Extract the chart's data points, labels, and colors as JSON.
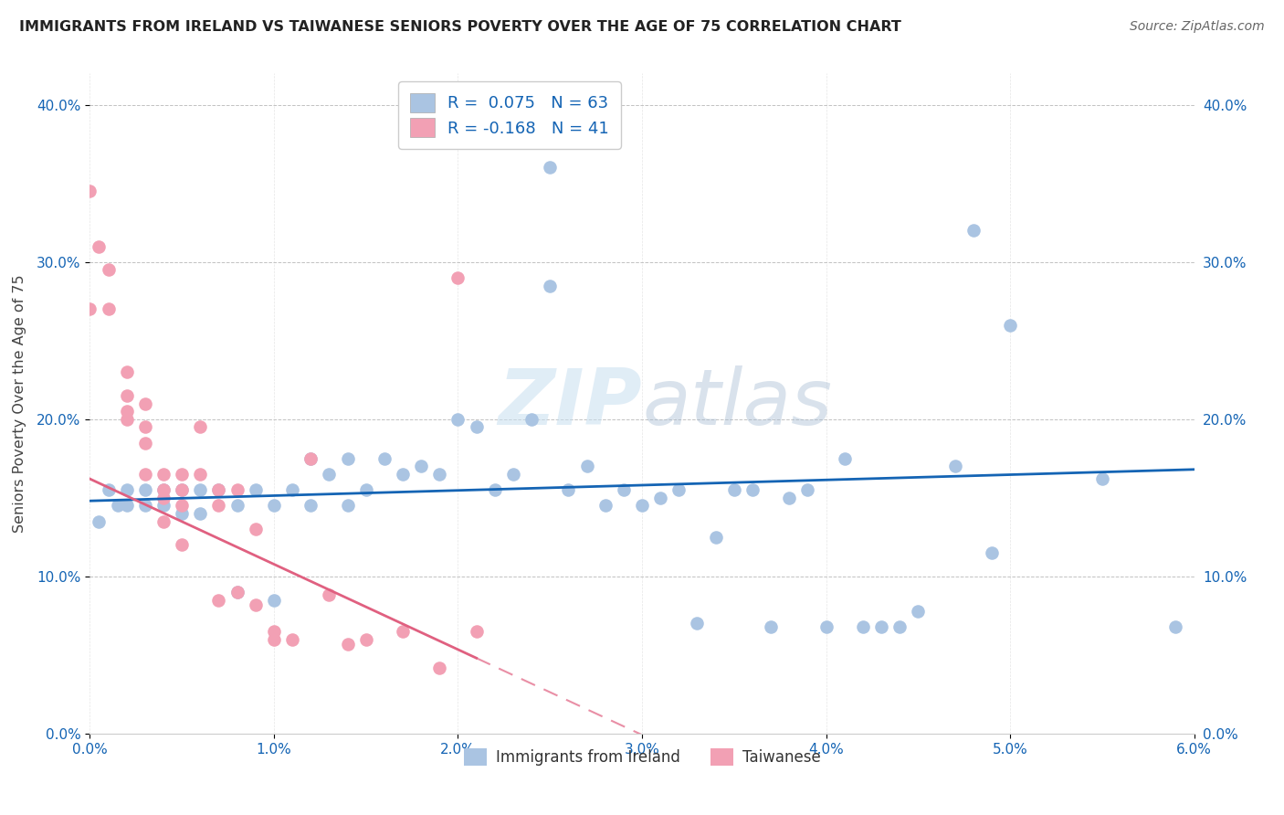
{
  "title": "IMMIGRANTS FROM IRELAND VS TAIWANESE SENIORS POVERTY OVER THE AGE OF 75 CORRELATION CHART",
  "source": "Source: ZipAtlas.com",
  "ylabel": "Seniors Poverty Over the Age of 75",
  "x_min": 0.0,
  "x_max": 0.06,
  "y_min": 0.0,
  "y_max": 0.42,
  "x_ticks": [
    0.0,
    0.01,
    0.02,
    0.03,
    0.04,
    0.05,
    0.06
  ],
  "y_ticks": [
    0.0,
    0.1,
    0.2,
    0.3,
    0.4
  ],
  "blue_color": "#aac4e2",
  "pink_color": "#f2a0b4",
  "blue_line_color": "#1464b4",
  "pink_line_color": "#e06080",
  "tick_color": "#1464b4",
  "watermark_color": "#c8dff0",
  "blue_scatter_x": [
    0.0005,
    0.001,
    0.0015,
    0.002,
    0.002,
    0.003,
    0.003,
    0.004,
    0.004,
    0.005,
    0.005,
    0.006,
    0.006,
    0.007,
    0.008,
    0.008,
    0.009,
    0.01,
    0.01,
    0.011,
    0.012,
    0.012,
    0.013,
    0.014,
    0.014,
    0.015,
    0.016,
    0.017,
    0.018,
    0.019,
    0.02,
    0.021,
    0.022,
    0.023,
    0.024,
    0.025,
    0.026,
    0.027,
    0.028,
    0.029,
    0.03,
    0.031,
    0.032,
    0.033,
    0.034,
    0.035,
    0.036,
    0.037,
    0.038,
    0.039,
    0.04,
    0.041,
    0.042,
    0.043,
    0.044,
    0.045,
    0.047,
    0.049,
    0.05,
    0.055,
    0.025,
    0.048,
    0.059
  ],
  "blue_scatter_y": [
    0.135,
    0.155,
    0.145,
    0.155,
    0.145,
    0.155,
    0.145,
    0.155,
    0.145,
    0.155,
    0.14,
    0.155,
    0.14,
    0.155,
    0.09,
    0.145,
    0.155,
    0.145,
    0.085,
    0.155,
    0.175,
    0.145,
    0.165,
    0.145,
    0.175,
    0.155,
    0.175,
    0.165,
    0.17,
    0.165,
    0.2,
    0.195,
    0.155,
    0.165,
    0.2,
    0.36,
    0.155,
    0.17,
    0.145,
    0.155,
    0.145,
    0.15,
    0.155,
    0.07,
    0.125,
    0.155,
    0.155,
    0.068,
    0.15,
    0.155,
    0.068,
    0.175,
    0.068,
    0.068,
    0.068,
    0.078,
    0.17,
    0.115,
    0.26,
    0.162,
    0.285,
    0.32,
    0.068
  ],
  "pink_scatter_x": [
    0.0,
    0.0,
    0.0005,
    0.001,
    0.001,
    0.002,
    0.002,
    0.002,
    0.003,
    0.003,
    0.003,
    0.003,
    0.004,
    0.004,
    0.004,
    0.004,
    0.005,
    0.005,
    0.005,
    0.005,
    0.006,
    0.006,
    0.007,
    0.007,
    0.007,
    0.008,
    0.008,
    0.009,
    0.009,
    0.01,
    0.01,
    0.011,
    0.012,
    0.013,
    0.014,
    0.015,
    0.017,
    0.019,
    0.02,
    0.021,
    0.002
  ],
  "pink_scatter_y": [
    0.345,
    0.27,
    0.31,
    0.295,
    0.27,
    0.23,
    0.215,
    0.205,
    0.21,
    0.195,
    0.185,
    0.165,
    0.165,
    0.155,
    0.15,
    0.135,
    0.165,
    0.155,
    0.145,
    0.12,
    0.195,
    0.165,
    0.155,
    0.145,
    0.085,
    0.155,
    0.09,
    0.13,
    0.082,
    0.065,
    0.06,
    0.06,
    0.175,
    0.088,
    0.057,
    0.06,
    0.065,
    0.042,
    0.29,
    0.065,
    0.2
  ],
  "blue_line_x0": 0.0,
  "blue_line_x1": 0.06,
  "blue_line_y0": 0.148,
  "blue_line_y1": 0.168,
  "pink_line_solid_x0": 0.0,
  "pink_line_solid_x1": 0.021,
  "pink_line_y0": 0.162,
  "pink_line_y1": 0.048,
  "pink_line_dash_x0": 0.021,
  "pink_line_dash_x1": 0.06
}
